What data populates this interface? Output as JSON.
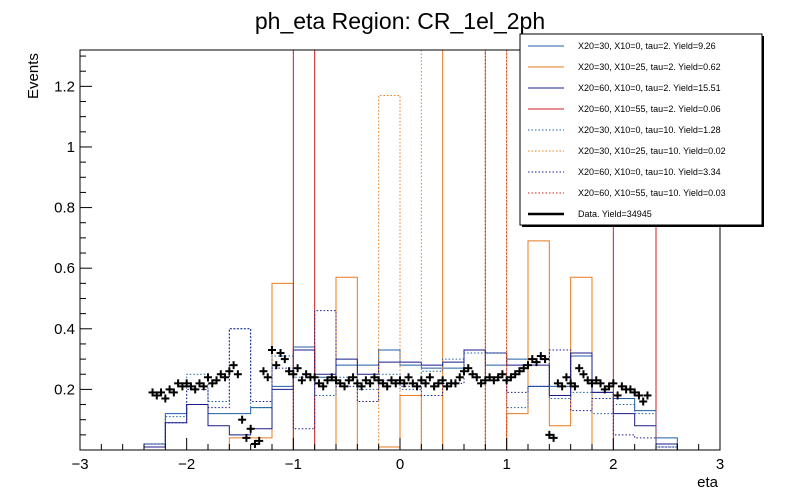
{
  "chart_data": {
    "type": "histogram",
    "title": "ph_eta Region: CR_1el_2ph",
    "xlabel": "eta",
    "ylabel": "Events",
    "xlim": [
      -3.0,
      3.0
    ],
    "ylim": [
      0.0,
      1.32
    ],
    "x_ticks": [
      -3,
      -2,
      -1,
      0,
      1,
      2,
      3
    ],
    "x_tick_labels": [
      "−3",
      "−2",
      "−1",
      "0",
      "1",
      "2",
      "3"
    ],
    "y_ticks": [
      0.2,
      0.4,
      0.6,
      0.8,
      1.0,
      1.2
    ],
    "y_tick_labels": [
      "0.2",
      "0.4",
      "0.6",
      "0.8",
      "1",
      "1.2"
    ],
    "bin_edges": [
      -3.0,
      -2.8,
      -2.6,
      -2.4,
      -2.2,
      -2.0,
      -1.8,
      -1.6,
      -1.4,
      -1.2,
      -1.0,
      -0.8,
      -0.6,
      -0.4,
      -0.2,
      0.0,
      0.2,
      0.4,
      0.6,
      0.8,
      1.0,
      1.2,
      1.4,
      1.6,
      1.8,
      2.0,
      2.2,
      2.4,
      2.6,
      2.8,
      3.0
    ],
    "series": [
      {
        "name": "X20=30, X10=0, tau=2. Yield=9.26",
        "color": "#1f5fa8",
        "dash": "",
        "values": [
          0,
          0,
          0,
          0.02,
          0.12,
          0.15,
          0.12,
          0.12,
          0.14,
          0.21,
          0.34,
          0.24,
          0.28,
          0.28,
          0.33,
          0.28,
          0.27,
          0.27,
          0.33,
          0.28,
          0.3,
          0.21,
          0.21,
          0.31,
          0.19,
          0.17,
          0.13,
          0.04,
          0,
          0
        ]
      },
      {
        "name": "X20=30, X10=25, tau=2. Yield=0.62",
        "color": "#e87b1e",
        "dash": "",
        "values": [
          0,
          0,
          0,
          0,
          0,
          0,
          0,
          0.04,
          0.04,
          0.55,
          0,
          0,
          0.57,
          0,
          0.01,
          0.18,
          0,
          1.32,
          1.32,
          0,
          0.12,
          0.69,
          0.08,
          0.57,
          0,
          0,
          0,
          0,
          0,
          0
        ]
      },
      {
        "name": "X20=60, X10=0, tau=2. Yield=15.51",
        "color": "#1a1a8c",
        "dash": "",
        "values": [
          0,
          0,
          0,
          0.01,
          0.09,
          0.15,
          0.08,
          0.05,
          0.07,
          0.2,
          0.33,
          0.25,
          0.3,
          0.25,
          0.29,
          0.29,
          0.28,
          0.29,
          0.33,
          0.32,
          0.28,
          0.28,
          0.18,
          0.32,
          0.19,
          0.12,
          0.08,
          0.02,
          0,
          0
        ]
      },
      {
        "name": "X20=60, X10=55, tau=2. Yield=0.06",
        "color": "#cc1f1f",
        "dash": "",
        "values": [
          0,
          0,
          0,
          0,
          0,
          0,
          0,
          0,
          0,
          0,
          1.32,
          0,
          0,
          0,
          0,
          0,
          0,
          0,
          0,
          0,
          0,
          0,
          0,
          0,
          0,
          1.32,
          1.32,
          0,
          0,
          0
        ]
      },
      {
        "name": "X20=30, X10=0, tau=10. Yield=1.28",
        "color": "#1f5fa8",
        "dash": "1.5,2",
        "values": [
          0,
          0,
          0,
          0.02,
          0.11,
          0.25,
          0.16,
          0.4,
          0.14,
          0.31,
          0.24,
          0.18,
          0.24,
          0.2,
          0.25,
          0.2,
          0.26,
          0.3,
          0.32,
          0.32,
          0.14,
          0.21,
          0.17,
          0.19,
          0.12,
          0.15,
          0.12,
          0.01,
          0,
          0
        ]
      },
      {
        "name": "X20=30, X10=25, tau=10. Yield=0.02",
        "color": "#e87b1e",
        "dash": "1.5,2",
        "values": [
          0,
          0,
          0,
          0,
          0,
          0,
          0,
          0,
          0,
          0,
          0,
          0,
          0,
          0,
          1.17,
          0,
          1.32,
          1.32,
          1.32,
          1.32,
          0,
          0,
          0,
          0,
          0,
          0,
          0,
          0,
          0,
          0
        ]
      },
      {
        "name": "X20=60, X10=0, tau=10. Yield=3.34",
        "color": "#1a1a8c",
        "dash": "1.5,2",
        "values": [
          0,
          0,
          0,
          0.02,
          0.09,
          0.2,
          0.14,
          0.4,
          0.16,
          0.27,
          0.07,
          0.46,
          0.21,
          0.16,
          0.23,
          0.21,
          0.18,
          0.22,
          0.33,
          0.23,
          0.19,
          0.21,
          0.33,
          0.13,
          0.17,
          0.05,
          0.04,
          0.01,
          0,
          0
        ]
      },
      {
        "name": "X20=60, X10=55, tau=10. Yield=0.03",
        "color": "#cc1f1f",
        "dash": "1.5,2",
        "values": [
          0,
          0,
          0,
          0,
          0,
          0,
          0,
          0,
          0,
          0,
          0,
          0,
          0,
          0,
          0,
          0,
          0,
          0,
          0,
          1.32,
          0,
          0,
          0,
          0,
          0,
          0,
          0,
          0,
          0,
          0
        ]
      }
    ],
    "data_series": {
      "name": "Data. Yield=34945",
      "color": "#000000",
      "x": [
        -2.32,
        -2.28,
        -2.24,
        -2.2,
        -2.16,
        -2.12,
        -2.08,
        -2.04,
        -2.0,
        -1.96,
        -1.92,
        -1.88,
        -1.84,
        -1.8,
        -1.76,
        -1.72,
        -1.68,
        -1.64,
        -1.6,
        -1.56,
        -1.52,
        -1.48,
        -1.44,
        -1.4,
        -1.36,
        -1.32,
        -1.28,
        -1.24,
        -1.2,
        -1.16,
        -1.12,
        -1.08,
        -1.04,
        -1.0,
        -0.96,
        -0.92,
        -0.88,
        -0.84,
        -0.8,
        -0.76,
        -0.72,
        -0.68,
        -0.64,
        -0.6,
        -0.56,
        -0.52,
        -0.48,
        -0.44,
        -0.4,
        -0.36,
        -0.32,
        -0.28,
        -0.24,
        -0.2,
        -0.16,
        -0.12,
        -0.08,
        -0.04,
        0.0,
        0.04,
        0.08,
        0.12,
        0.16,
        0.2,
        0.24,
        0.28,
        0.32,
        0.36,
        0.4,
        0.44,
        0.48,
        0.52,
        0.56,
        0.6,
        0.64,
        0.68,
        0.72,
        0.76,
        0.8,
        0.84,
        0.88,
        0.92,
        0.96,
        1.0,
        1.04,
        1.08,
        1.12,
        1.16,
        1.2,
        1.24,
        1.28,
        1.32,
        1.36,
        1.4,
        1.44,
        1.48,
        1.52,
        1.56,
        1.6,
        1.64,
        1.68,
        1.72,
        1.76,
        1.8,
        1.84,
        1.88,
        1.92,
        1.96,
        2.0,
        2.04,
        2.08,
        2.12,
        2.16,
        2.2,
        2.24,
        2.28,
        2.32
      ],
      "y": [
        0.19,
        0.18,
        0.19,
        0.17,
        0.2,
        0.19,
        0.22,
        0.21,
        0.22,
        0.21,
        0.2,
        0.22,
        0.21,
        0.24,
        0.22,
        0.23,
        0.25,
        0.24,
        0.26,
        0.28,
        0.25,
        0.1,
        0.04,
        0.07,
        0.02,
        0.03,
        0.26,
        0.24,
        0.33,
        0.28,
        0.32,
        0.3,
        0.26,
        0.25,
        0.27,
        0.23,
        0.25,
        0.24,
        0.24,
        0.22,
        0.21,
        0.23,
        0.24,
        0.23,
        0.22,
        0.21,
        0.23,
        0.24,
        0.22,
        0.21,
        0.23,
        0.22,
        0.24,
        0.23,
        0.22,
        0.21,
        0.23,
        0.22,
        0.23,
        0.22,
        0.24,
        0.22,
        0.21,
        0.23,
        0.22,
        0.24,
        0.21,
        0.22,
        0.23,
        0.21,
        0.22,
        0.22,
        0.24,
        0.26,
        0.27,
        0.25,
        0.24,
        0.22,
        0.23,
        0.24,
        0.23,
        0.24,
        0.25,
        0.23,
        0.24,
        0.25,
        0.26,
        0.27,
        0.28,
        0.3,
        0.29,
        0.31,
        0.3,
        0.05,
        0.04,
        0.22,
        0.21,
        0.24,
        0.22,
        0.21,
        0.27,
        0.25,
        0.23,
        0.22,
        0.23,
        0.22,
        0.2,
        0.21,
        0.22,
        0.18,
        0.21,
        0.2,
        0.2,
        0.19,
        0.18,
        0.16,
        0.18
      ],
      "xerr": 0.02,
      "yerr": 0.008
    },
    "legend_position": "top-right"
  }
}
